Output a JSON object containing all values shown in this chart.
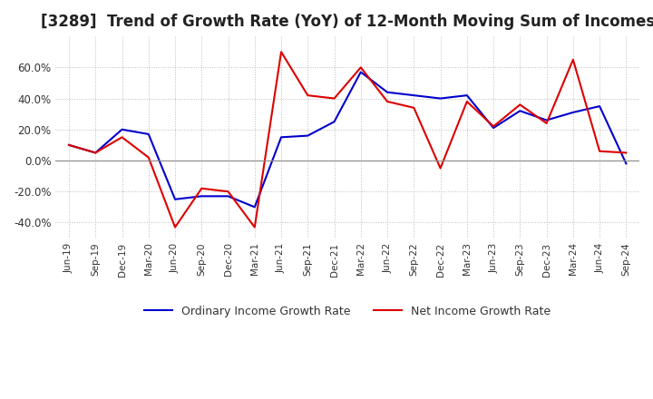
{
  "title": "[3289]  Trend of Growth Rate (YoY) of 12-Month Moving Sum of Incomes",
  "title_fontsize": 12,
  "ylim": [
    -0.5,
    0.8
  ],
  "yticks": [
    -0.4,
    -0.2,
    0.0,
    0.2,
    0.4,
    0.6
  ],
  "background_color": "#ffffff",
  "grid_color": "#bbbbbb",
  "ordinary_color": "#0000cc",
  "net_color": "#dd0000",
  "legend_ordinary": "Ordinary Income Growth Rate",
  "legend_net": "Net Income Growth Rate",
  "dates": [
    "Jun-19",
    "Sep-19",
    "Dec-19",
    "Mar-20",
    "Jun-20",
    "Sep-20",
    "Dec-20",
    "Mar-21",
    "Jun-21",
    "Sep-21",
    "Dec-21",
    "Mar-22",
    "Jun-22",
    "Sep-22",
    "Dec-22",
    "Mar-23",
    "Jun-23",
    "Sep-23",
    "Dec-23",
    "Mar-24",
    "Jun-24",
    "Sep-24"
  ],
  "ordinary_values": [
    0.1,
    0.05,
    0.2,
    0.17,
    -0.25,
    -0.23,
    -0.23,
    -0.3,
    0.15,
    0.16,
    0.25,
    0.57,
    0.44,
    0.42,
    0.4,
    0.42,
    0.21,
    0.32,
    0.26,
    0.31,
    0.35,
    -0.02
  ],
  "net_values": [
    0.1,
    0.05,
    0.15,
    0.02,
    -0.43,
    -0.18,
    -0.2,
    -0.43,
    0.7,
    0.42,
    0.4,
    0.6,
    0.38,
    0.34,
    -0.05,
    0.38,
    0.22,
    0.36,
    0.24,
    0.65,
    0.06,
    0.05
  ]
}
